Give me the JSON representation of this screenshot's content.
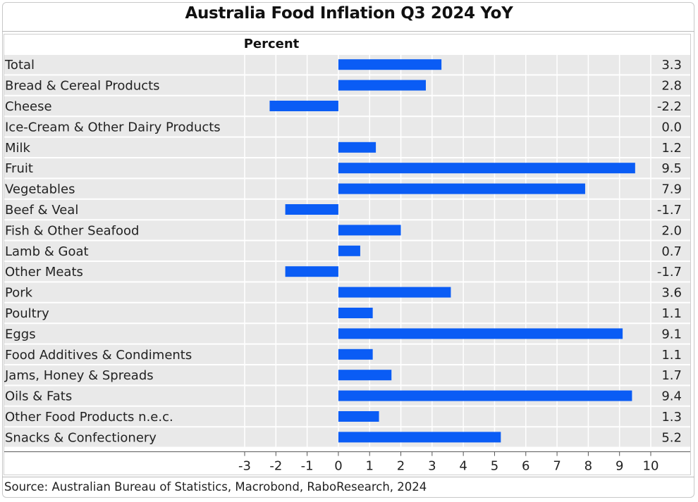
{
  "title": "Australia Food Inflation Q3 2024 YoY",
  "source": "Source: Australian Bureau of Statistics, Macrobond, RaboResearch, 2024",
  "colors": {
    "bar": "#0a5cf5",
    "stripe": "#e9e9e9",
    "grid": "#ffffff"
  },
  "chart_data": {
    "type": "bar",
    "orientation": "horizontal",
    "value_header": "Percent",
    "xlim": [
      -3,
      10
    ],
    "xticks": [
      "-3",
      "-2",
      "-1",
      "0",
      "1",
      "2",
      "3",
      "4",
      "5",
      "6",
      "7",
      "8",
      "9",
      "10"
    ],
    "categories": [
      "Total",
      "Bread & Cereal Products",
      "Cheese",
      "Ice-Cream & Other Dairy Products",
      "Milk",
      "Fruit",
      "Vegetables",
      "Beef & Veal",
      "Fish & Other Seafood",
      "Lamb & Goat",
      "Other Meats",
      "Pork",
      "Poultry",
      "Eggs",
      "Food Additives & Condiments",
      "Jams, Honey & Spreads",
      "Oils & Fats",
      "Other Food Products n.e.c.",
      "Snacks & Confectionery"
    ],
    "values": [
      3.3,
      2.8,
      -2.2,
      0.0,
      1.2,
      9.5,
      7.9,
      -1.7,
      2.0,
      0.7,
      -1.7,
      3.6,
      1.1,
      9.1,
      1.1,
      1.7,
      9.4,
      1.3,
      5.2
    ],
    "value_labels": [
      "3.3",
      "2.8",
      "-2.2",
      "0.0",
      "1.2",
      "9.5",
      "7.9",
      "-1.7",
      "2.0",
      "0.7",
      "-1.7",
      "3.6",
      "1.1",
      "9.1",
      "1.1",
      "1.7",
      "9.4",
      "1.3",
      "5.2"
    ],
    "grid": true,
    "legend": "none"
  }
}
